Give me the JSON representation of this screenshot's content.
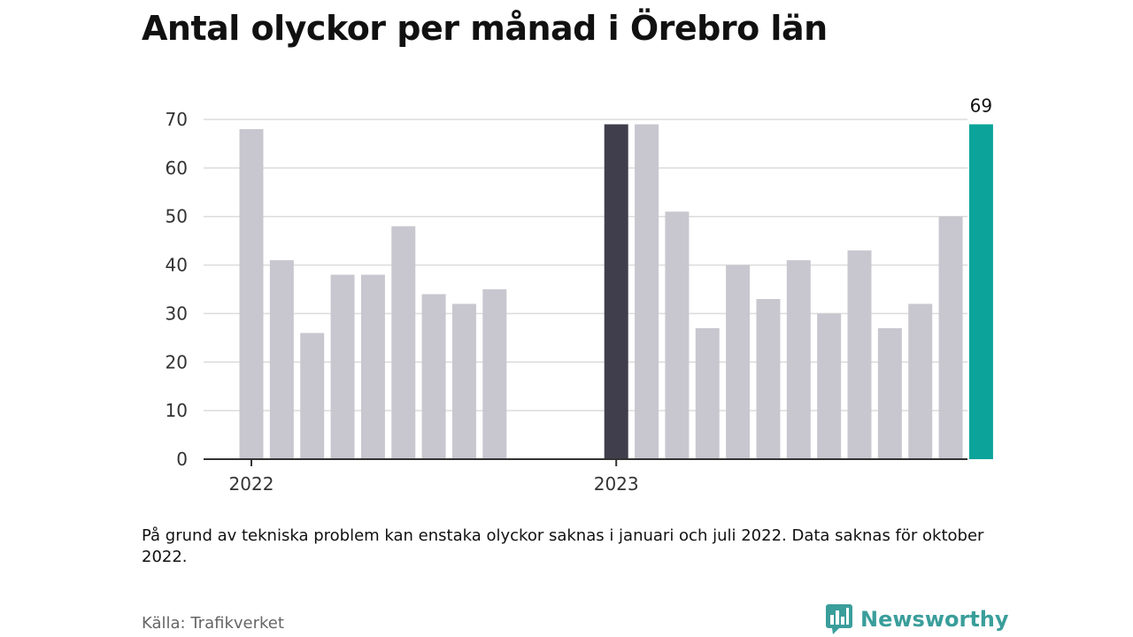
{
  "title": "Antal olyckor per månad i Örebro län",
  "note": "På grund av tekniska problem kan enstaka olyckor saknas i januari och juli 2022. Data saknas för oktober 2022.",
  "source": "Källa: Trafikverket",
  "brand": {
    "name": "Newsworthy",
    "color": "#3a9e9b",
    "logo_icon": "newsworthy-logo-icon"
  },
  "chart_data": {
    "type": "bar",
    "title": "Antal olyckor per månad i Örebro län",
    "xlabel": "",
    "ylabel": "",
    "ylim": [
      0,
      70
    ],
    "yticks": [
      0,
      10,
      20,
      30,
      40,
      50,
      60,
      70
    ],
    "x_tick_labels": [
      {
        "label": "2022",
        "at": "2022-01"
      },
      {
        "label": "2023",
        "at": "2023-01"
      }
    ],
    "categories": [
      "2022-01",
      "2022-02",
      "2022-03",
      "2022-04",
      "2022-05",
      "2022-06",
      "2022-07",
      "2022-08",
      "2022-09",
      "2023-01",
      "2023-02",
      "2023-03",
      "2023-04",
      "2023-05",
      "2023-06",
      "2023-07",
      "2023-08",
      "2023-09",
      "2023-10",
      "2023-11",
      "2023-12",
      "2024-01"
    ],
    "values": [
      68,
      41,
      26,
      38,
      38,
      48,
      34,
      32,
      35,
      69,
      69,
      51,
      27,
      40,
      33,
      41,
      30,
      43,
      27,
      32,
      50,
      69
    ],
    "highlight": {
      "2023-01": "#403e4c",
      "2024-01": "#0ba39a"
    },
    "default_color": "#c8c7cf",
    "value_labels": [
      {
        "category": "2024-01",
        "text": "69"
      }
    ],
    "grid": true,
    "legend": "none"
  }
}
